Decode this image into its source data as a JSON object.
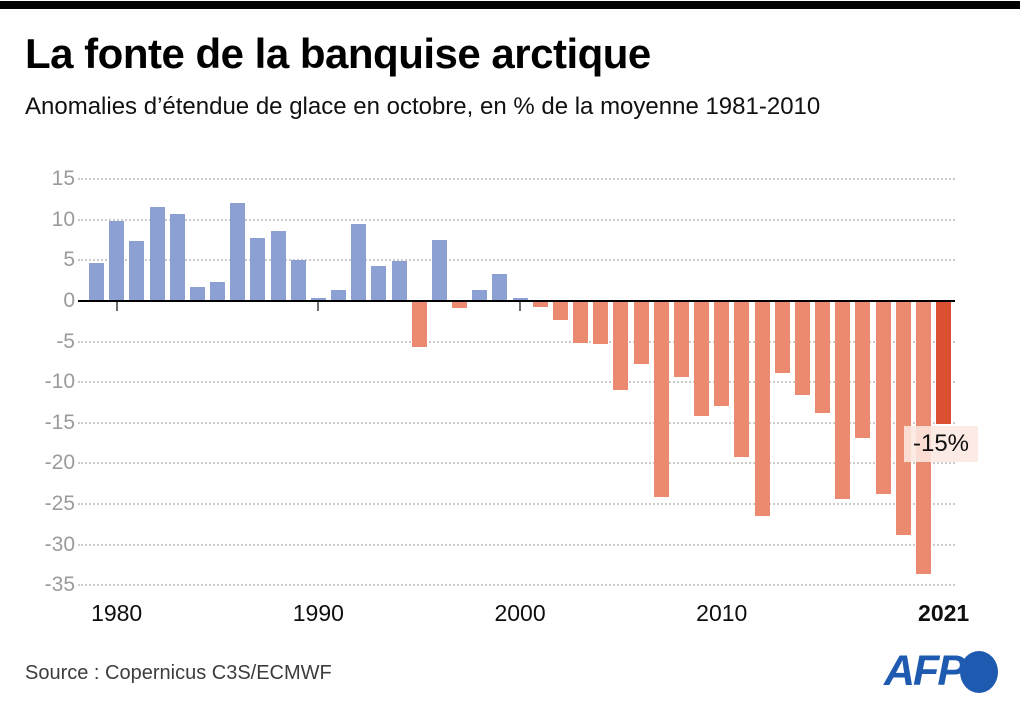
{
  "header": {
    "title": "La fonte de la banquise arctique",
    "subtitle": "Anomalies d’étendue de glace en octobre, en % de la moyenne 1981-2010"
  },
  "chart_data": {
    "type": "bar",
    "title": "La fonte de la banquise arctique",
    "subtitle": "Anomalies d’étendue de glace en octobre, en % de la moyenne 1981-2010",
    "unit": "%",
    "ylim": [
      -35,
      15
    ],
    "grid": "horizontal-dotted",
    "yticks": [
      15,
      10,
      5,
      0,
      -5,
      -10,
      -15,
      -20,
      -25,
      -30,
      -35
    ],
    "xticks": [
      {
        "label": "1980",
        "year": 1980,
        "tick": true,
        "bold": false
      },
      {
        "label": "1990",
        "year": 1990,
        "tick": true,
        "bold": false
      },
      {
        "label": "2000",
        "year": 2000,
        "tick": true,
        "bold": false
      },
      {
        "label": "2010",
        "year": 2010,
        "tick": true,
        "bold": false
      },
      {
        "label": "2021",
        "year": 2021,
        "tick": false,
        "bold": true
      }
    ],
    "years": [
      1979,
      1980,
      1981,
      1982,
      1983,
      1984,
      1985,
      1986,
      1987,
      1988,
      1989,
      1990,
      1991,
      1992,
      1993,
      1994,
      1995,
      1996,
      1997,
      1998,
      1999,
      2000,
      2001,
      2002,
      2003,
      2004,
      2005,
      2006,
      2007,
      2008,
      2009,
      2010,
      2011,
      2012,
      2013,
      2014,
      2015,
      2016,
      2017,
      2018,
      2019,
      2020,
      2021
    ],
    "values": [
      4.7,
      9.9,
      7.4,
      11.6,
      10.7,
      1.7,
      2.3,
      12.1,
      7.7,
      8.6,
      5.1,
      0.4,
      1.3,
      9.5,
      4.3,
      4.9,
      -5.6,
      7.5,
      -0.7,
      1.3,
      3.3,
      0.4,
      -0.6,
      -2.2,
      -5.1,
      -5.2,
      -10.8,
      -7.6,
      -24.0,
      -9.2,
      -14.1,
      -12.8,
      -19.1,
      -26.4,
      -8.8,
      -11.5,
      -13.7,
      -24.2,
      -16.8,
      -23.6,
      -28.7,
      -33.5,
      -15.0
    ],
    "colors": {
      "positive": "#8ca0d3",
      "negative": "#ec8a70",
      "highlight_last": "#dc4f31",
      "annotation_bg": "#fce7e0"
    },
    "annotation": {
      "text": "-15%",
      "year": 2021,
      "value": -15
    }
  },
  "footer": {
    "source": "Source : Copernicus C3S/ECMWF",
    "logo_text": "AFP",
    "logo_color": "#1e5ab0"
  }
}
